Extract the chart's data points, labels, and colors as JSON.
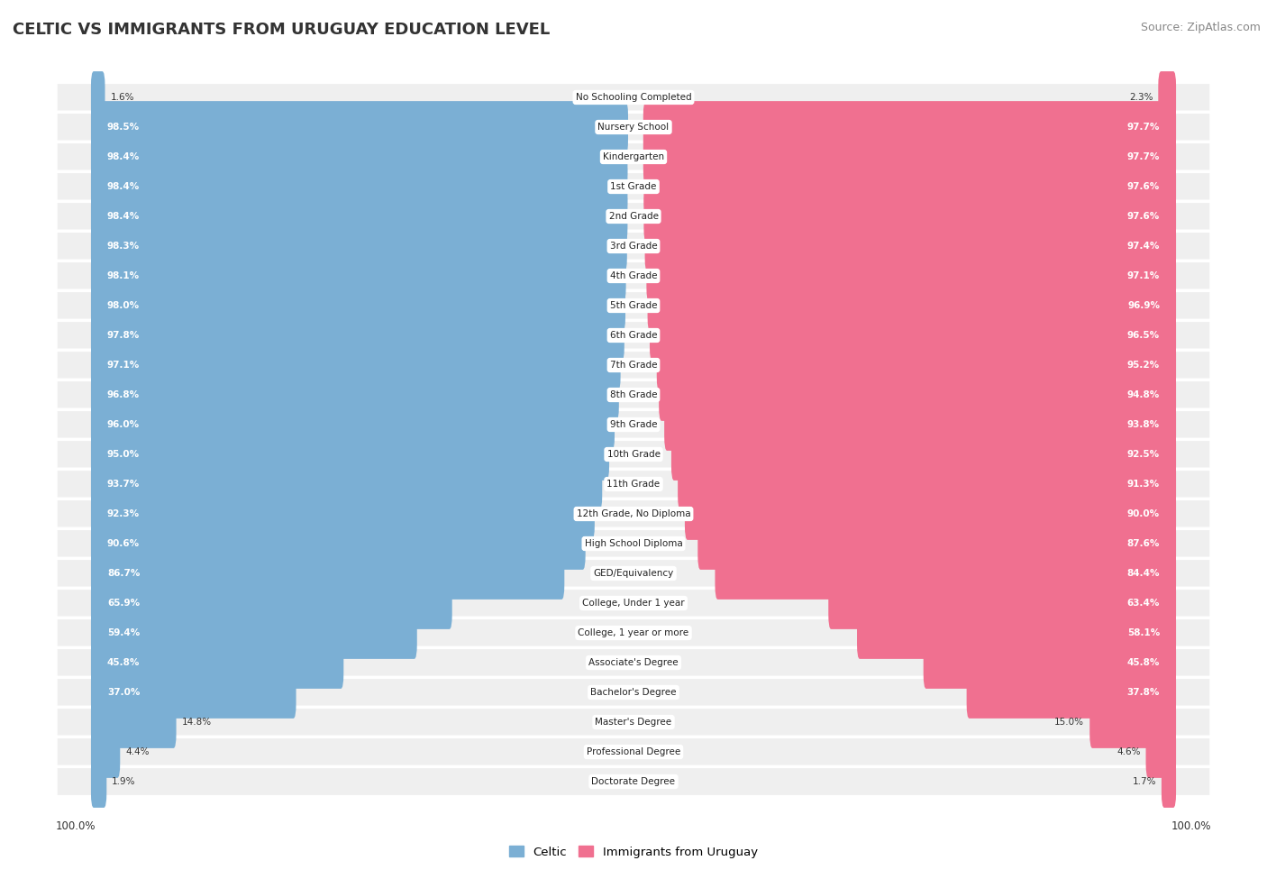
{
  "title": "Celtic vs Immigrants from Uruguay Education Level",
  "title_display": "CELTIC VS IMMIGRANTS FROM URUGUAY EDUCATION LEVEL",
  "source": "Source: ZipAtlas.com",
  "categories": [
    "No Schooling Completed",
    "Nursery School",
    "Kindergarten",
    "1st Grade",
    "2nd Grade",
    "3rd Grade",
    "4th Grade",
    "5th Grade",
    "6th Grade",
    "7th Grade",
    "8th Grade",
    "9th Grade",
    "10th Grade",
    "11th Grade",
    "12th Grade, No Diploma",
    "High School Diploma",
    "GED/Equivalency",
    "College, Under 1 year",
    "College, 1 year or more",
    "Associate's Degree",
    "Bachelor's Degree",
    "Master's Degree",
    "Professional Degree",
    "Doctorate Degree"
  ],
  "celtic": [
    1.6,
    98.5,
    98.4,
    98.4,
    98.4,
    98.3,
    98.1,
    98.0,
    97.8,
    97.1,
    96.8,
    96.0,
    95.0,
    93.7,
    92.3,
    90.6,
    86.7,
    65.9,
    59.4,
    45.8,
    37.0,
    14.8,
    4.4,
    1.9
  ],
  "uruguay": [
    2.3,
    97.7,
    97.7,
    97.6,
    97.6,
    97.4,
    97.1,
    96.9,
    96.5,
    95.2,
    94.8,
    93.8,
    92.5,
    91.3,
    90.0,
    87.6,
    84.4,
    63.4,
    58.1,
    45.8,
    37.8,
    15.0,
    4.6,
    1.7
  ],
  "celtic_color": "#7bafd4",
  "uruguay_color": "#f07090",
  "row_bg_color": "#efefef",
  "row_sep_color": "#ffffff",
  "legend_celtic": "Celtic",
  "legend_uruguay": "Immigrants from Uruguay",
  "white_text_threshold": 30.0,
  "max_val": 100.0
}
